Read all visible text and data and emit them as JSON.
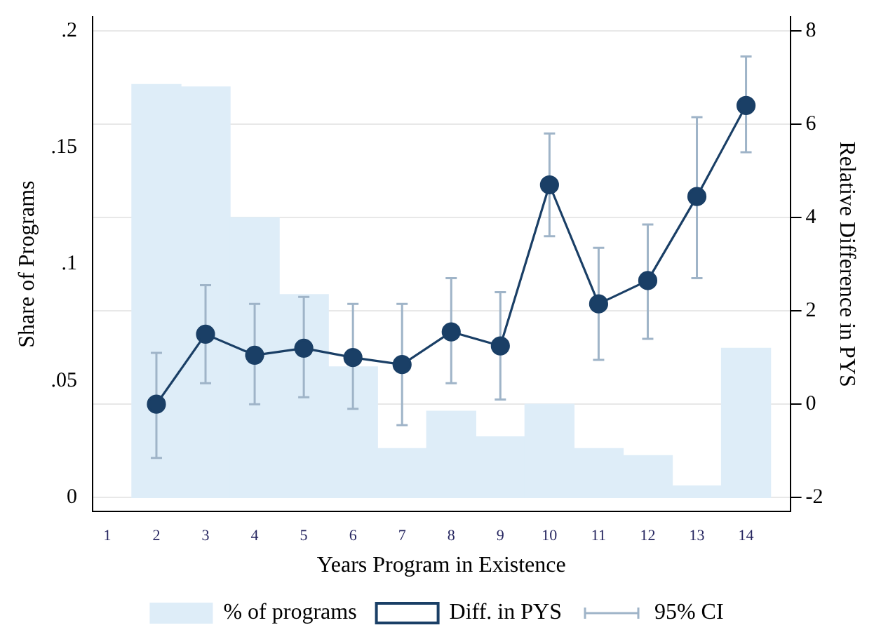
{
  "chart_data": {
    "type": "bar",
    "xlabel": "Years Program in Existence",
    "ylabel": "Share of Programs",
    "y2label": "Relative Difference in PYS",
    "x": [
      2,
      3,
      4,
      5,
      6,
      7,
      8,
      9,
      10,
      11,
      12,
      13,
      14
    ],
    "series": [
      {
        "name": "% of programs",
        "color": "#deedf8",
        "values": [
          0.177,
          0.176,
          0.12,
          0.087,
          0.056,
          0.021,
          0.037,
          0.026,
          0.04,
          0.021,
          0.018,
          0.005,
          0.064
        ]
      },
      {
        "name": "Diff. in PYS",
        "type": "line",
        "axis": "y2",
        "color": "#1a3f66",
        "marker": "circle",
        "values": [
          0.0,
          1.5,
          1.05,
          1.2,
          1.0,
          0.85,
          1.55,
          1.25,
          4.7,
          2.15,
          2.65,
          4.45,
          6.4
        ],
        "errors": [
          [
            -1.15,
            1.1
          ],
          [
            0.45,
            2.55
          ],
          [
            0.0,
            2.15
          ],
          [
            0.15,
            2.3
          ],
          [
            -0.1,
            2.15
          ],
          [
            -0.45,
            2.15
          ],
          [
            0.45,
            2.7
          ],
          [
            0.1,
            2.4
          ],
          [
            3.6,
            5.8
          ],
          [
            0.95,
            3.35
          ],
          [
            1.4,
            3.85
          ],
          [
            2.7,
            6.15
          ],
          [
            5.4,
            7.45
          ]
        ]
      }
    ],
    "annotations": [
      "95% CI"
    ],
    "xlim": [
      0.7,
      14.9
    ],
    "xticks": [
      1,
      2,
      3,
      4,
      5,
      6,
      7,
      8,
      9,
      10,
      11,
      12,
      13,
      14
    ],
    "ylim": [
      -0.006,
      0.206
    ],
    "yticks": [
      {
        "value": 0,
        "label": "0"
      },
      {
        "value": 0.05,
        "label": ".05"
      },
      {
        "value": 0.1,
        "label": ".1"
      },
      {
        "value": 0.15,
        "label": ".15"
      },
      {
        "value": 0.2,
        "label": ".2"
      }
    ],
    "y2lim": [
      -2.3,
      8.3
    ],
    "y2ticks": [
      -2,
      0,
      2,
      4,
      6,
      8
    ],
    "grid": "y2",
    "legend": "bottom"
  }
}
